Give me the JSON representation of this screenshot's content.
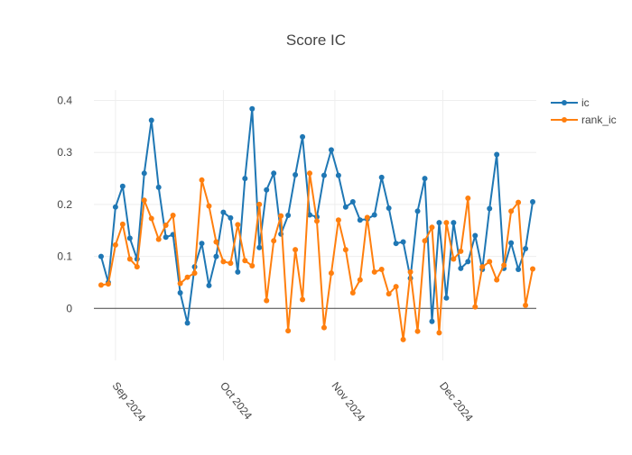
{
  "chart_data": {
    "type": "line",
    "title": "Score IC",
    "xlabel": "",
    "ylabel": "",
    "xlim": [
      "2024-08-26",
      "2024-12-27"
    ],
    "ylim": [
      -0.1,
      0.42
    ],
    "yticks": [
      0,
      0.1,
      0.2,
      0.3,
      0.4
    ],
    "ytick_labels": [
      "0",
      "0.1",
      "0.2",
      "0.3",
      "0.4"
    ],
    "xticks": [
      "2024-09-01",
      "2024-10-01",
      "2024-11-01",
      "2024-12-01"
    ],
    "xtick_labels": [
      "Sep 2024",
      "Oct 2024",
      "Nov 2024",
      "Dec 2024"
    ],
    "grid": true,
    "legend_position": "top-right",
    "x": [
      "2024-08-28",
      "2024-08-30",
      "2024-09-01",
      "2024-09-03",
      "2024-09-05",
      "2024-09-07",
      "2024-09-09",
      "2024-09-11",
      "2024-09-13",
      "2024-09-15",
      "2024-09-17",
      "2024-09-19",
      "2024-09-21",
      "2024-09-23",
      "2024-09-25",
      "2024-09-27",
      "2024-09-29",
      "2024-10-01",
      "2024-10-03",
      "2024-10-05",
      "2024-10-07",
      "2024-10-09",
      "2024-10-11",
      "2024-10-13",
      "2024-10-15",
      "2024-10-17",
      "2024-10-19",
      "2024-10-21",
      "2024-10-23",
      "2024-10-25",
      "2024-10-27",
      "2024-10-29",
      "2024-10-31",
      "2024-11-02",
      "2024-11-04",
      "2024-11-06",
      "2024-11-08",
      "2024-11-10",
      "2024-11-12",
      "2024-11-14",
      "2024-11-16",
      "2024-11-18",
      "2024-11-20",
      "2024-11-22",
      "2024-11-24",
      "2024-11-26",
      "2024-11-28",
      "2024-11-30",
      "2024-12-02",
      "2024-12-04",
      "2024-12-06",
      "2024-12-08",
      "2024-12-10",
      "2024-12-12",
      "2024-12-14",
      "2024-12-16",
      "2024-12-18",
      "2024-12-20",
      "2024-12-22",
      "2024-12-24",
      "2024-12-26"
    ],
    "series": [
      {
        "name": "ic",
        "color": "#1f77b4",
        "values": [
          0.1,
          0.05,
          0.195,
          0.235,
          0.135,
          0.095,
          0.26,
          0.362,
          0.233,
          0.137,
          0.142,
          0.03,
          -0.028,
          0.08,
          0.125,
          0.044,
          0.1,
          0.185,
          0.174,
          0.07,
          0.25,
          0.384,
          0.117,
          0.228,
          0.26,
          0.143,
          0.179,
          0.257,
          0.33,
          0.18,
          0.176,
          0.256,
          0.305,
          0.256,
          0.195,
          0.205,
          0.17,
          0.172,
          0.18,
          0.252,
          0.193,
          0.125,
          0.128,
          0.058,
          0.187,
          0.25,
          -0.025,
          0.165,
          0.02,
          0.165,
          0.077,
          0.09,
          0.14,
          0.075,
          0.192,
          0.296,
          0.077,
          0.126,
          0.075,
          0.115,
          0.205
        ]
      },
      {
        "name": "rank_ic",
        "color": "#ff7f0e",
        "values": [
          0.045,
          0.047,
          0.122,
          0.162,
          0.095,
          0.08,
          0.208,
          0.173,
          0.133,
          0.16,
          0.179,
          0.048,
          0.06,
          0.068,
          0.247,
          0.197,
          0.128,
          0.09,
          0.087,
          0.161,
          0.092,
          0.082,
          0.2,
          0.015,
          0.13,
          0.178,
          -0.043,
          0.113,
          0.017,
          0.26,
          0.168,
          -0.037,
          0.068,
          0.17,
          0.113,
          0.03,
          0.055,
          0.175,
          0.07,
          0.075,
          0.028,
          0.042,
          -0.06,
          0.07,
          -0.044,
          0.13,
          0.156,
          -0.047,
          0.165,
          0.095,
          0.11,
          0.212,
          0.003,
          0.08,
          0.09,
          0.055,
          0.083,
          0.187,
          0.204,
          0.006,
          0.076
        ]
      }
    ]
  }
}
